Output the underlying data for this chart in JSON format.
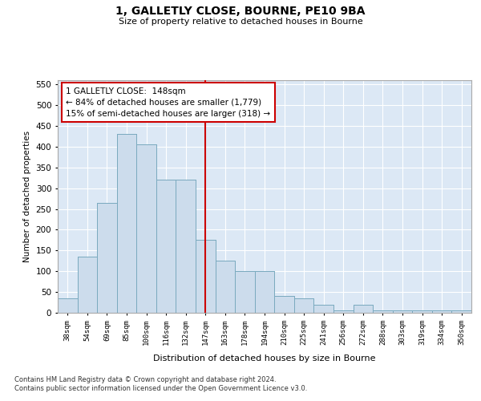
{
  "title": "1, GALLETLY CLOSE, BOURNE, PE10 9BA",
  "subtitle": "Size of property relative to detached houses in Bourne",
  "xlabel": "Distribution of detached houses by size in Bourne",
  "ylabel": "Number of detached properties",
  "bar_color": "#ccdcec",
  "bar_edge_color": "#7aaabf",
  "background_color": "#dce8f5",
  "grid_color": "#ffffff",
  "vline_color": "#cc0000",
  "vline_idx": 7,
  "annotation_text": "1 GALLETLY CLOSE:  148sqm\n← 84% of detached houses are smaller (1,779)\n15% of semi-detached houses are larger (318) →",
  "annotation_box_color": "#cc0000",
  "categories": [
    "38sqm",
    "54sqm",
    "69sqm",
    "85sqm",
    "100sqm",
    "116sqm",
    "132sqm",
    "147sqm",
    "163sqm",
    "178sqm",
    "194sqm",
    "210sqm",
    "225sqm",
    "241sqm",
    "256sqm",
    "272sqm",
    "288sqm",
    "303sqm",
    "319sqm",
    "334sqm",
    "350sqm"
  ],
  "values": [
    35,
    135,
    265,
    430,
    405,
    320,
    320,
    175,
    125,
    100,
    100,
    40,
    35,
    20,
    5,
    20,
    5,
    5,
    5,
    5,
    5
  ],
  "ylim": [
    0,
    560
  ],
  "yticks": [
    0,
    50,
    100,
    150,
    200,
    250,
    300,
    350,
    400,
    450,
    500,
    550
  ],
  "footnote1": "Contains HM Land Registry data © Crown copyright and database right 2024.",
  "footnote2": "Contains public sector information licensed under the Open Government Licence v3.0."
}
